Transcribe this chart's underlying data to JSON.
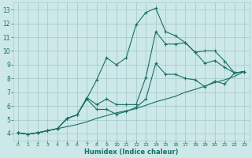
{
  "title": "",
  "xlabel": "Humidex (Indice chaleur)",
  "bg_color": "#cce8e8",
  "grid_color": "#aacccc",
  "line_color": "#1a7060",
  "xlim": [
    -0.5,
    23.5
  ],
  "ylim": [
    3.5,
    13.5
  ],
  "xticks": [
    0,
    1,
    2,
    3,
    4,
    5,
    6,
    7,
    8,
    9,
    10,
    11,
    12,
    13,
    14,
    15,
    16,
    17,
    18,
    19,
    20,
    21,
    22,
    23
  ],
  "yticks": [
    4,
    5,
    6,
    7,
    8,
    9,
    10,
    11,
    12,
    13
  ],
  "lines": [
    {
      "x": [
        0,
        1,
        2,
        3,
        4,
        5,
        6,
        7,
        8,
        9,
        10,
        11,
        12,
        13,
        14,
        15,
        16,
        17,
        18,
        19,
        20,
        21,
        22,
        23
      ],
      "y": [
        4.05,
        3.95,
        4.05,
        4.2,
        4.35,
        5.1,
        5.35,
        6.55,
        7.9,
        9.5,
        9.0,
        9.5,
        11.9,
        12.8,
        13.1,
        11.4,
        11.1,
        10.6,
        9.9,
        10.0,
        10.0,
        9.25,
        8.4,
        8.5
      ],
      "marker": true
    },
    {
      "x": [
        0,
        1,
        2,
        3,
        4,
        5,
        6,
        7,
        8,
        9,
        10,
        11,
        12,
        13,
        14,
        15,
        16,
        17,
        18,
        19,
        20,
        21,
        22,
        23
      ],
      "y": [
        4.05,
        3.95,
        4.05,
        4.2,
        4.35,
        5.1,
        5.35,
        6.6,
        6.1,
        6.5,
        6.1,
        6.1,
        6.1,
        8.1,
        11.4,
        10.5,
        10.5,
        10.6,
        9.9,
        9.1,
        9.3,
        8.8,
        8.4,
        8.5
      ],
      "marker": true
    },
    {
      "x": [
        0,
        1,
        2,
        3,
        4,
        5,
        6,
        7,
        8,
        9,
        10,
        11,
        12,
        13,
        14,
        15,
        16,
        17,
        18,
        19,
        20,
        21,
        22,
        23
      ],
      "y": [
        4.05,
        3.95,
        4.05,
        4.2,
        4.35,
        5.1,
        5.35,
        6.5,
        5.75,
        5.75,
        5.4,
        5.6,
        5.9,
        6.5,
        9.1,
        8.3,
        8.3,
        8.0,
        7.9,
        7.4,
        7.8,
        7.6,
        8.4,
        8.5
      ],
      "marker": true
    },
    {
      "x": [
        0,
        1,
        2,
        3,
        4,
        5,
        6,
        7,
        8,
        9,
        10,
        11,
        12,
        13,
        14,
        15,
        16,
        17,
        18,
        19,
        20,
        21,
        22,
        23
      ],
      "y": [
        4.05,
        3.95,
        4.05,
        4.2,
        4.35,
        4.5,
        4.65,
        4.85,
        5.1,
        5.3,
        5.5,
        5.65,
        5.8,
        6.05,
        6.3,
        6.5,
        6.7,
        7.0,
        7.2,
        7.45,
        7.7,
        7.9,
        8.15,
        8.5
      ],
      "marker": false
    }
  ]
}
